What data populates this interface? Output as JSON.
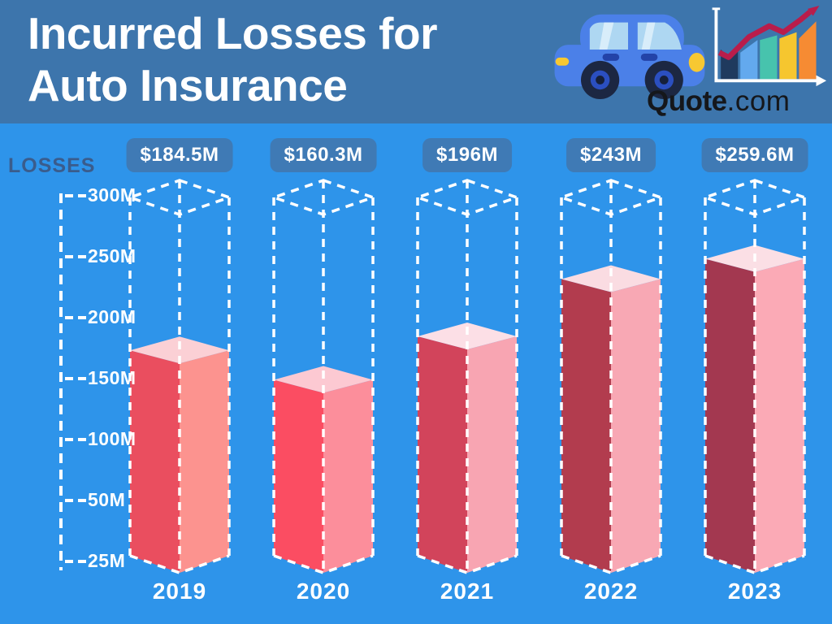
{
  "header": {
    "title_line1": "Incurred Losses for",
    "title_line2": "Auto Insurance",
    "brand_name": "Quote",
    "brand_tld": ".com"
  },
  "chart_data": {
    "type": "bar",
    "title": "Incurred Losses for Auto Insurance",
    "ylabel": "LOSSES",
    "unit": "USD millions",
    "ylim": [
      25,
      300
    ],
    "grid": false,
    "legend": "none",
    "yticks": [
      "300M",
      "250M",
      "200M",
      "150M",
      "100M",
      "50M",
      "25M"
    ],
    "ytick_values": [
      300,
      250,
      200,
      150,
      100,
      50,
      25
    ],
    "categories": [
      "2019",
      "2020",
      "2021",
      "2022",
      "2023"
    ],
    "values": [
      184.5,
      160.3,
      196,
      243,
      259.6
    ],
    "bars": [
      {
        "year": "2019",
        "value": 184.5,
        "label": "$184.5M",
        "color_left": "#ea4e5f",
        "color_right": "#fc938f",
        "color_top": "#fbd0d5"
      },
      {
        "year": "2020",
        "value": 160.3,
        "label": "$160.3M",
        "color_left": "#fb4d62",
        "color_right": "#fc8e9b",
        "color_top": "#fcc9d2"
      },
      {
        "year": "2021",
        "value": 196,
        "label": "$196M",
        "color_left": "#d2445b",
        "color_right": "#f8a5b2",
        "color_top": "#fcdfe6"
      },
      {
        "year": "2022",
        "value": 243,
        "label": "$243M",
        "color_left": "#b23c4e",
        "color_right": "#f8a8b4",
        "color_top": "#fadce2"
      },
      {
        "year": "2023",
        "value": 259.6,
        "label": "$259.6M",
        "color_left": "#a33850",
        "color_right": "#fbaab6",
        "color_top": "#fbdfe5"
      }
    ]
  },
  "colors": {
    "header_bg": "#3d75ac",
    "body_bg": "#2e94ea",
    "badge_bg": "#3f7ab5",
    "losses_text": "#3a5c8c",
    "title_text": "#ffffff",
    "brand_text": "#15171b",
    "wireframe": "#ffffff",
    "logo_trend_line": "#b91d4b"
  }
}
